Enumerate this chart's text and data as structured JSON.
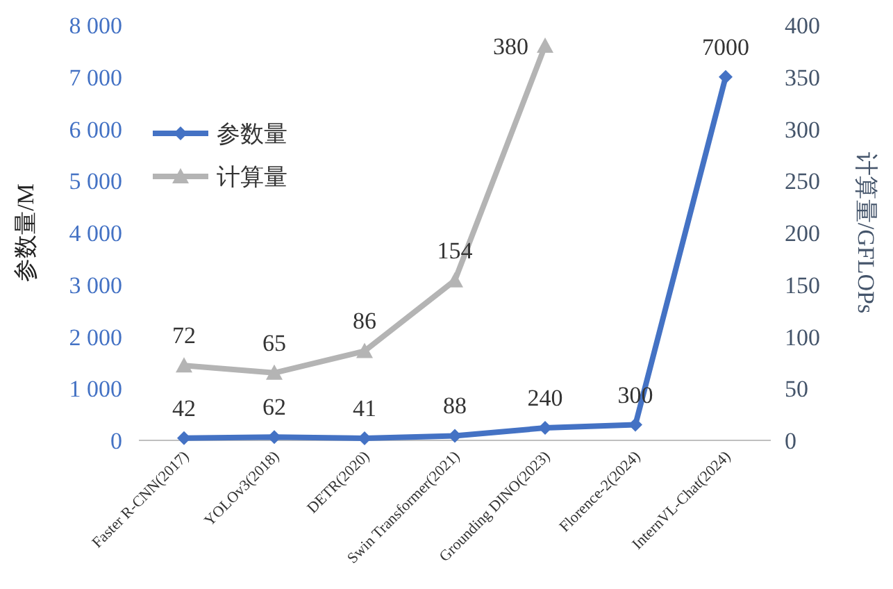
{
  "chart_data": {
    "type": "line",
    "ylabel": "参数量/M",
    "y2label": "计算量/GFLOPs",
    "categories": [
      "Faster R-CNN(2017)",
      "YOLOv3(2018)",
      "DETR(2020)",
      "Swin Transformer(2021)",
      "Grounding DINO(2023)",
      "Florence-2(2024)",
      "InternVL-Chat(2024)"
    ],
    "series": [
      {
        "name": "参数量",
        "color": "#4472c4",
        "marker": "diamond",
        "values": [
          42,
          62,
          41,
          88,
          240,
          300,
          7000
        ]
      },
      {
        "name": "计算量",
        "color": "#b4b4b4",
        "marker": "triangle",
        "axis": "y2",
        "values": [
          72,
          65,
          86,
          154,
          380,
          null,
          null
        ]
      }
    ],
    "ylim": [
      0,
      8000
    ],
    "yticks": [
      0,
      {
        "value": 1000,
        "label": "1 000"
      },
      {
        "value": 2000,
        "label": "2 000"
      },
      {
        "value": 3000,
        "label": "3 000"
      },
      {
        "value": 4000,
        "label": "4 000"
      },
      {
        "value": 5000,
        "label": "5 000"
      },
      {
        "value": 6000,
        "label": "6 000"
      },
      {
        "value": 7000,
        "label": "7 000"
      },
      {
        "value": 8000,
        "label": "8 000"
      }
    ],
    "y2lim": [
      0,
      400
    ],
    "y2ticks": [
      0,
      50,
      100,
      150,
      200,
      250,
      300,
      350,
      400
    ],
    "data_labels": true,
    "legend": "top left",
    "grid": false,
    "line_style": "solid"
  }
}
